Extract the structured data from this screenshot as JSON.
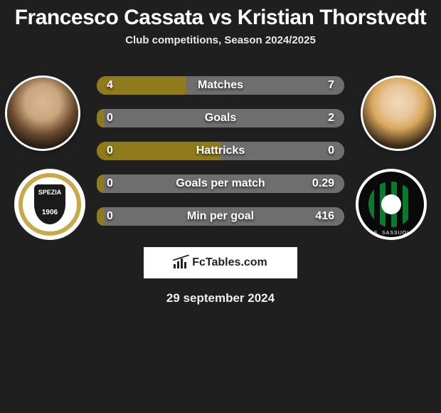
{
  "title": "Francesco Cassata vs Kristian Thorstvedt",
  "subtitle": "Club competitions, Season 2024/2025",
  "brand": "FcTables.com",
  "date": "29 september 2024",
  "colors": {
    "track": "#b39a2e",
    "left_fill": "#8f7a1c",
    "right_fill": "#6e6e6e",
    "background": "#1f1f1f",
    "text": "#ffffff"
  },
  "rows": [
    {
      "label": "Matches",
      "left": "4",
      "right": "7",
      "lpct": 36,
      "rpct": 64
    },
    {
      "label": "Goals",
      "left": "0",
      "right": "2",
      "lpct": 3,
      "rpct": 97
    },
    {
      "label": "Hattricks",
      "left": "0",
      "right": "0",
      "lpct": 50,
      "rpct": 50
    },
    {
      "label": "Goals per match",
      "left": "0",
      "right": "0.29",
      "lpct": 3,
      "rpct": 97
    },
    {
      "label": "Min per goal",
      "left": "0",
      "right": "416",
      "lpct": 3,
      "rpct": 97
    }
  ],
  "club_left": {
    "name": "SPEZIA",
    "year": "1906"
  },
  "club_right": {
    "name": "U.S. SASSUOLO"
  }
}
